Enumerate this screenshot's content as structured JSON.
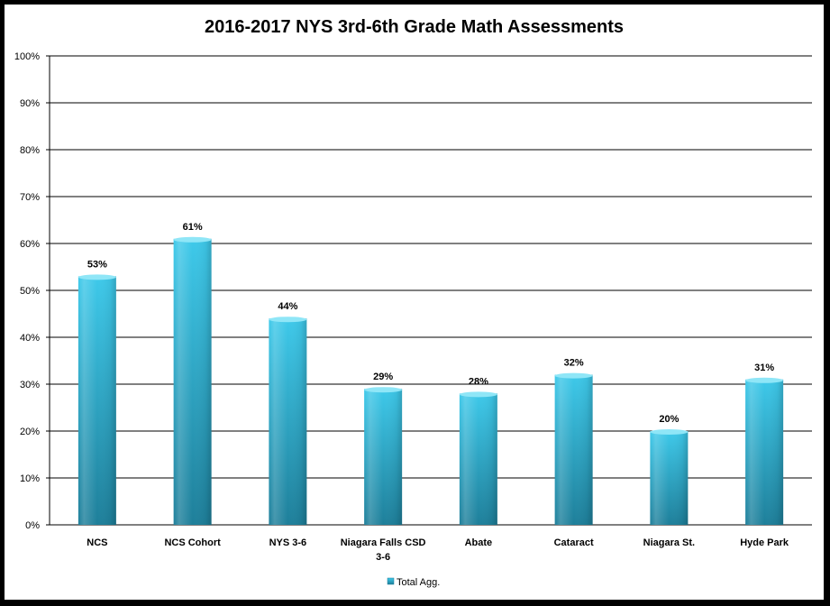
{
  "chart_data": {
    "type": "bar",
    "title": "2016-2017  NYS 3rd-6th Grade Math Assessments",
    "categories": [
      "NCS",
      "NCS Cohort",
      "NYS 3-6",
      "Niagara Falls CSD 3-6",
      "Abate",
      "Cataract",
      "Niagara St.",
      "Hyde Park"
    ],
    "category_lines": [
      [
        "NCS"
      ],
      [
        "NCS Cohort"
      ],
      [
        "NYS 3-6"
      ],
      [
        "Niagara Falls CSD",
        "3-6"
      ],
      [
        "Abate"
      ],
      [
        "Cataract"
      ],
      [
        "Niagara St."
      ],
      [
        "Hyde Park"
      ]
    ],
    "series": [
      {
        "name": "Total Agg.",
        "values": [
          53,
          61,
          44,
          29,
          28,
          32,
          20,
          31
        ]
      }
    ],
    "data_labels": [
      "53%",
      "61%",
      "44%",
      "29%",
      "28%",
      "32%",
      "20%",
      "31%"
    ],
    "yticks": [
      "0%",
      "10%",
      "20%",
      "30%",
      "40%",
      "50%",
      "60%",
      "70%",
      "80%",
      "90%",
      "100%"
    ],
    "ylim": [
      0,
      100
    ],
    "grid": true,
    "legend_position": "bottom",
    "colors": {
      "bar_top": "#3ec9ea",
      "bar_bottom": "#1e7f9a",
      "grid": "#000000"
    }
  }
}
